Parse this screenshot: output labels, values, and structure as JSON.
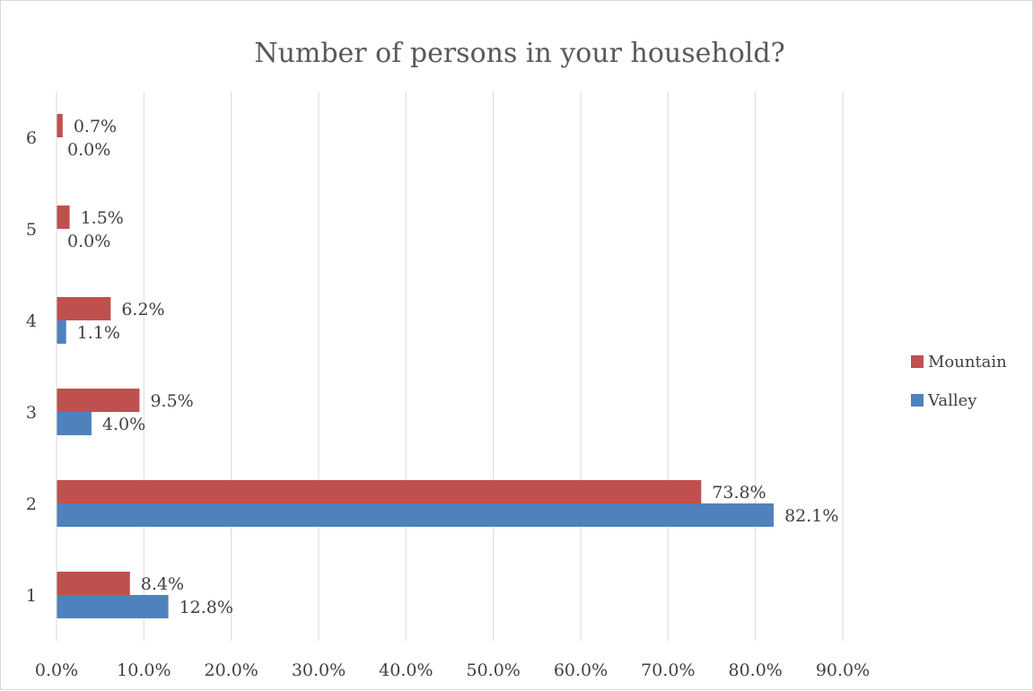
{
  "chart_data": {
    "type": "bar",
    "orientation": "horizontal",
    "title": "Number of persons in your household?",
    "categories": [
      "1",
      "2",
      "3",
      "4",
      "5",
      "6"
    ],
    "series": [
      {
        "name": "Mountain",
        "color": "#c0504d",
        "values": [
          8.4,
          73.8,
          9.5,
          6.2,
          1.5,
          0.7
        ],
        "labels": [
          "8.4%",
          "73.8%",
          "9.5%",
          "6.2%",
          "1.5%",
          "0.7%"
        ]
      },
      {
        "name": "Valley",
        "color": "#4f81bd",
        "values": [
          12.8,
          82.1,
          4.0,
          1.1,
          0.0,
          0.0
        ],
        "labels": [
          "12.8%",
          "82.1%",
          "4.0%",
          "1.1%",
          "0.0%",
          "0.0%"
        ]
      }
    ],
    "xlim": [
      0,
      90
    ],
    "xticks": [
      "0.0%",
      "10.0%",
      "20.0%",
      "30.0%",
      "40.0%",
      "50.0%",
      "60.0%",
      "70.0%",
      "80.0%",
      "90.0%"
    ],
    "grid": true,
    "legend_position": "right"
  }
}
